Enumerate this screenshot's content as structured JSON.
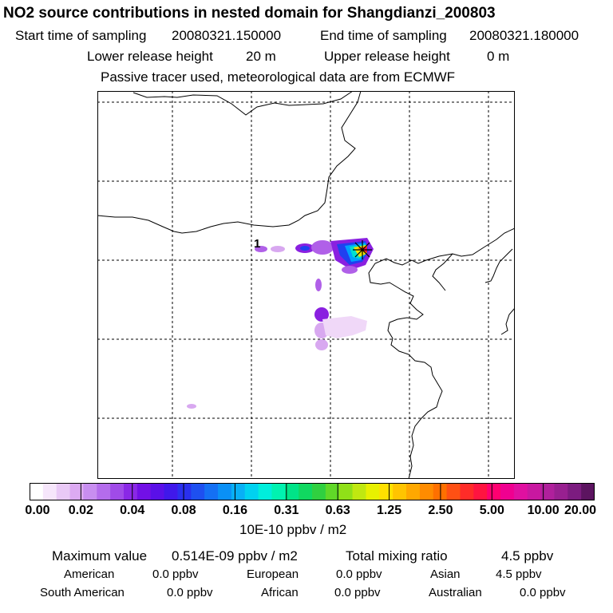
{
  "header": {
    "title": "NO2 source contributions in nested domain for Shangdianzi_200803",
    "start_label": "Start time of sampling",
    "start_value": "20080321.150000",
    "end_label": "End time of sampling",
    "end_value": "20080321.180000",
    "lower_label": "Lower release height",
    "lower_value": "20 m",
    "upper_label": "Upper release height",
    "upper_value": "0 m",
    "note": "Passive tracer used, meteorological data are from ECMWF"
  },
  "map": {
    "marker_label": "1",
    "receptor_marker_icon": "asterisk-star-icon",
    "plume_colors": [
      "#f0d8f8",
      "#d8a8f0",
      "#b060e8",
      "#8a20e0",
      "#2040f0",
      "#00a0ff",
      "#00e0d0",
      "#20d060",
      "#f0e000",
      "#ff6000",
      "#ff0040"
    ]
  },
  "colorbar": {
    "colors": [
      "#ffffff",
      "#f6e6fb",
      "#e9c9f6",
      "#dcaaf2",
      "#c88ef0",
      "#b46cec",
      "#a04be8",
      "#8a28e6",
      "#7210e6",
      "#5a10e8",
      "#4018ea",
      "#2a30ee",
      "#1e50f0",
      "#1470f4",
      "#0a90f6",
      "#08b0f6",
      "#00d2f0",
      "#00eedc",
      "#00f2b0",
      "#00e488",
      "#10d860",
      "#30d040",
      "#60d828",
      "#90e018",
      "#c0e810",
      "#e8f000",
      "#ffe000",
      "#ffc400",
      "#ffa800",
      "#ff8c00",
      "#ff7000",
      "#ff5014",
      "#ff2c28",
      "#ff1440",
      "#ff0070",
      "#f00090",
      "#e010a0",
      "#c818a0",
      "#b0209c",
      "#982090",
      "#7c1c80",
      "#5c1460"
    ],
    "tick_labels": [
      "0.00",
      "0.02",
      "0.04",
      "0.08",
      "0.16",
      "0.31",
      "0.63",
      "1.25",
      "2.50",
      "5.00",
      "10.00",
      "20.00"
    ],
    "units": "10E-10 ppbv / m2"
  },
  "stats": {
    "max_label": "Maximum value",
    "max_value": "0.514E-09 ppbv / m2",
    "total_label": "Total mixing ratio",
    "total_value": "4.5 ppbv",
    "groups": [
      {
        "name": "American",
        "value": "0.0 ppbv"
      },
      {
        "name": "European",
        "value": "0.0 ppbv"
      },
      {
        "name": "Asian",
        "value": "4.5 ppbv"
      },
      {
        "name": "South American",
        "value": "0.0 ppbv"
      },
      {
        "name": "African",
        "value": "0.0 ppbv"
      },
      {
        "name": "Australian",
        "value": "0.0 ppbv"
      }
    ]
  }
}
